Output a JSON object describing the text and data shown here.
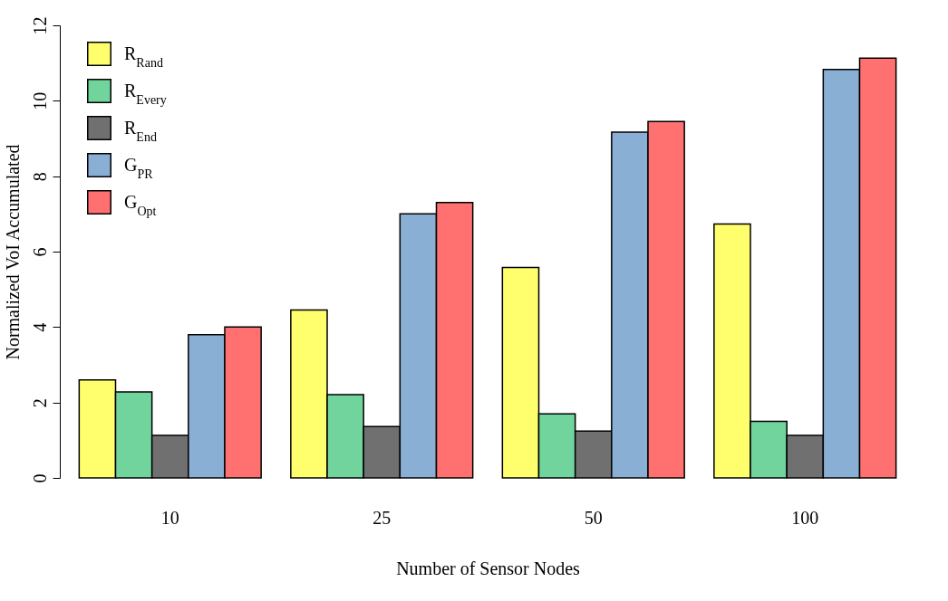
{
  "chart_data": {
    "type": "bar",
    "xlabel": "Number of Sensor Nodes",
    "ylabel": "Normalized VoI Accumulated",
    "categories": [
      "10",
      "25",
      "50",
      "100"
    ],
    "series": [
      {
        "name": "R$_{Rand}$",
        "color": "#ffff6e",
        "values": [
          2.6,
          4.45,
          5.58,
          6.73
        ]
      },
      {
        "name": "R$_{Every}$",
        "color": "#71d49d",
        "values": [
          2.28,
          2.21,
          1.7,
          1.5
        ]
      },
      {
        "name": "R$_{End}$",
        "color": "#707070",
        "values": [
          1.13,
          1.36,
          1.24,
          1.13
        ]
      },
      {
        "name": "G$_{PR}$",
        "color": "#8aafd5",
        "values": [
          3.8,
          7.0,
          9.17,
          10.83
        ]
      },
      {
        "name": "G$_{Opt}$",
        "color": "#ff7070",
        "values": [
          4.0,
          7.3,
          9.45,
          11.13
        ]
      }
    ],
    "ylim": [
      0,
      12
    ],
    "yticks": [
      0,
      2,
      4,
      6,
      8,
      10,
      12
    ],
    "grid": false,
    "legend": "top left"
  }
}
